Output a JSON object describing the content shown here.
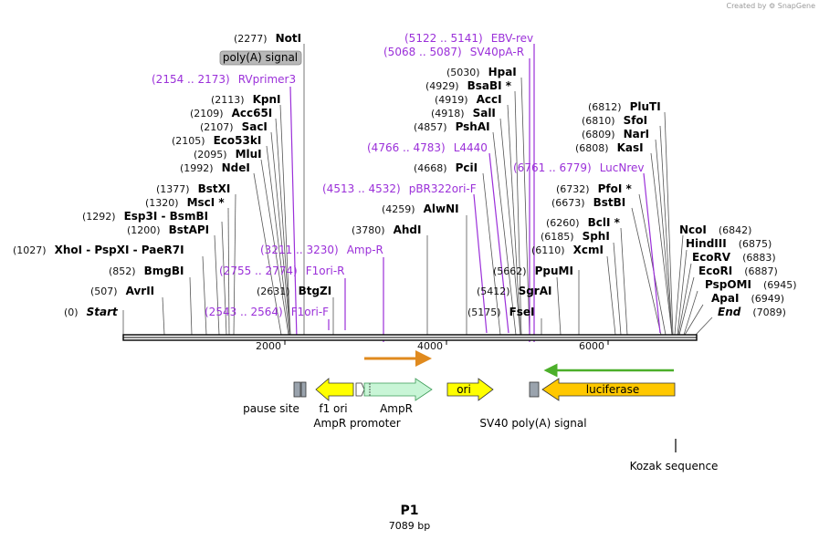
{
  "credit": "Created by ⚙ SnapGene",
  "map_title": "P1",
  "map_length": "7089 bp",
  "ticks": [
    "2000",
    "4000",
    "6000"
  ],
  "sites": [
    {
      "id": "start",
      "pos": "(0)",
      "name": "Start",
      "side": "left"
    },
    {
      "id": "avrii",
      "pos": "(507)",
      "name": "AvrII",
      "side": "left"
    },
    {
      "id": "bmgbi",
      "pos": "(852)",
      "name": "BmgBI",
      "side": "left"
    },
    {
      "id": "xhoi",
      "pos": "(1027)",
      "name": "XhoI  - PspXI  - PaeR7I",
      "side": "left"
    },
    {
      "id": "bstapi",
      "pos": "(1200)",
      "name": "BstAPI",
      "side": "left"
    },
    {
      "id": "esp3i",
      "pos": "(1292)",
      "name": "Esp3I  - BsmBI",
      "side": "left"
    },
    {
      "id": "msci",
      "pos": "(1320)",
      "name": "MscI *",
      "side": "left"
    },
    {
      "id": "bstxi",
      "pos": "(1377)",
      "name": "BstXI",
      "side": "left"
    },
    {
      "id": "ndei",
      "pos": "(1992)",
      "name": "NdeI",
      "side": "left"
    },
    {
      "id": "mlui",
      "pos": "(2095)",
      "name": "MluI",
      "side": "left"
    },
    {
      "id": "eco53ki",
      "pos": "(2105)",
      "name": "Eco53kI",
      "side": "left"
    },
    {
      "id": "saci",
      "pos": "(2107)",
      "name": "SacI",
      "side": "left"
    },
    {
      "id": "acc65i",
      "pos": "(2109)",
      "name": "Acc65I",
      "side": "left"
    },
    {
      "id": "kpni",
      "pos": "(2113)",
      "name": "KpnI",
      "side": "left"
    },
    {
      "id": "noti",
      "pos": "(2277)",
      "name": "NotI",
      "side": "left"
    },
    {
      "id": "btgzi",
      "pos": "(2631)",
      "name": "BtgZI",
      "side": "left"
    },
    {
      "id": "ahdi",
      "pos": "(3780)",
      "name": "AhdI",
      "side": "left"
    },
    {
      "id": "alwni",
      "pos": "(4259)",
      "name": "AlwNI",
      "side": "left"
    },
    {
      "id": "pcii",
      "pos": "(4668)",
      "name": "PciI",
      "side": "left"
    },
    {
      "id": "pshai",
      "pos": "(4857)",
      "name": "PshAI",
      "side": "left"
    },
    {
      "id": "sali",
      "pos": "(4918)",
      "name": "SalI",
      "side": "left"
    },
    {
      "id": "acci",
      "pos": "(4919)",
      "name": "AccI",
      "side": "left"
    },
    {
      "id": "bsabi",
      "pos": "(4929)",
      "name": "BsaBI *",
      "side": "left"
    },
    {
      "id": "hpai",
      "pos": "(5030)",
      "name": "HpaI",
      "side": "left"
    },
    {
      "id": "fsei",
      "pos": "(5175)",
      "name": "FseI",
      "side": "left"
    },
    {
      "id": "sgrai",
      "pos": "(5412)",
      "name": "SgrAI",
      "side": "left"
    },
    {
      "id": "ppumi",
      "pos": "(5662)",
      "name": "PpuMI",
      "side": "left"
    },
    {
      "id": "xcmi",
      "pos": "(6110)",
      "name": "XcmI",
      "side": "left"
    },
    {
      "id": "sphi",
      "pos": "(6185)",
      "name": "SphI",
      "side": "left"
    },
    {
      "id": "bcli",
      "pos": "(6260)",
      "name": "BclI *",
      "side": "left"
    },
    {
      "id": "bstbi",
      "pos": "(6673)",
      "name": "BstBI",
      "side": "left"
    },
    {
      "id": "pfoi",
      "pos": "(6732)",
      "name": "PfoI *",
      "side": "left"
    },
    {
      "id": "kasi",
      "pos": "(6808)",
      "name": "KasI",
      "side": "left"
    },
    {
      "id": "nari",
      "pos": "(6809)",
      "name": "NarI",
      "side": "left"
    },
    {
      "id": "sfoi",
      "pos": "(6810)",
      "name": "SfoI",
      "side": "left"
    },
    {
      "id": "pluti",
      "pos": "(6812)",
      "name": "PluTI",
      "side": "left"
    },
    {
      "id": "ncoi",
      "pos": "(6842)",
      "name": "NcoI",
      "side": "right"
    },
    {
      "id": "hindiii",
      "pos": "(6875)",
      "name": "HindIII",
      "side": "right"
    },
    {
      "id": "ecorv",
      "pos": "(6883)",
      "name": "EcoRV",
      "side": "right"
    },
    {
      "id": "ecori",
      "pos": "(6887)",
      "name": "EcoRI",
      "side": "right"
    },
    {
      "id": "pspomi",
      "pos": "(6945)",
      "name": "PspOMI",
      "side": "right"
    },
    {
      "id": "apai",
      "pos": "(6949)",
      "name": "ApaI",
      "side": "right"
    },
    {
      "id": "end",
      "pos": "(7089)",
      "name": "End",
      "side": "right"
    }
  ],
  "primers": [
    {
      "id": "rvprimer3",
      "range": "(2154 .. 2173)",
      "name": "RVprimer3"
    },
    {
      "id": "amp-r",
      "range": "(3211 .. 3230)",
      "name": "Amp-R"
    },
    {
      "id": "f1ori-r",
      "range": "(2755 .. 2774)",
      "name": "F1ori-R"
    },
    {
      "id": "f1ori-f",
      "range": "(2543 .. 2564)",
      "name": "F1ori-F"
    },
    {
      "id": "ebv-rev",
      "range": "(5122 .. 5141)",
      "name": "EBV-rev"
    },
    {
      "id": "sv40pa-r",
      "range": "(5068 .. 5087)",
      "name": "SV40pA-R"
    },
    {
      "id": "l4440",
      "range": "(4766 .. 4783)",
      "name": "L4440"
    },
    {
      "id": "pbr322ori-f",
      "range": "(4513 .. 4532)",
      "name": "pBR322ori-F"
    },
    {
      "id": "lucnrev",
      "range": "(6761 .. 6779)",
      "name": "LucNrev"
    }
  ],
  "features": {
    "polya_badge": "poly(A) signal",
    "ampr": "AmpR",
    "ori": "ori",
    "luciferase": "luciferase",
    "pause_site": "pause site",
    "f1_ori": "f1 ori",
    "ampr_promoter": "AmpR promoter",
    "sv40_polya": "SV40 poly(A) signal",
    "kozak": "Kozak sequence"
  },
  "colors": {
    "primer": "#9b30d9",
    "ampr_fill": "#c8f5d6",
    "ampr_stroke": "#3a9a55",
    "ori_fill": "#ffff00",
    "luciferase_fill": "#ffc800",
    "orange_arrow": "#e08a1e",
    "green_arrow": "#4caf2a"
  }
}
